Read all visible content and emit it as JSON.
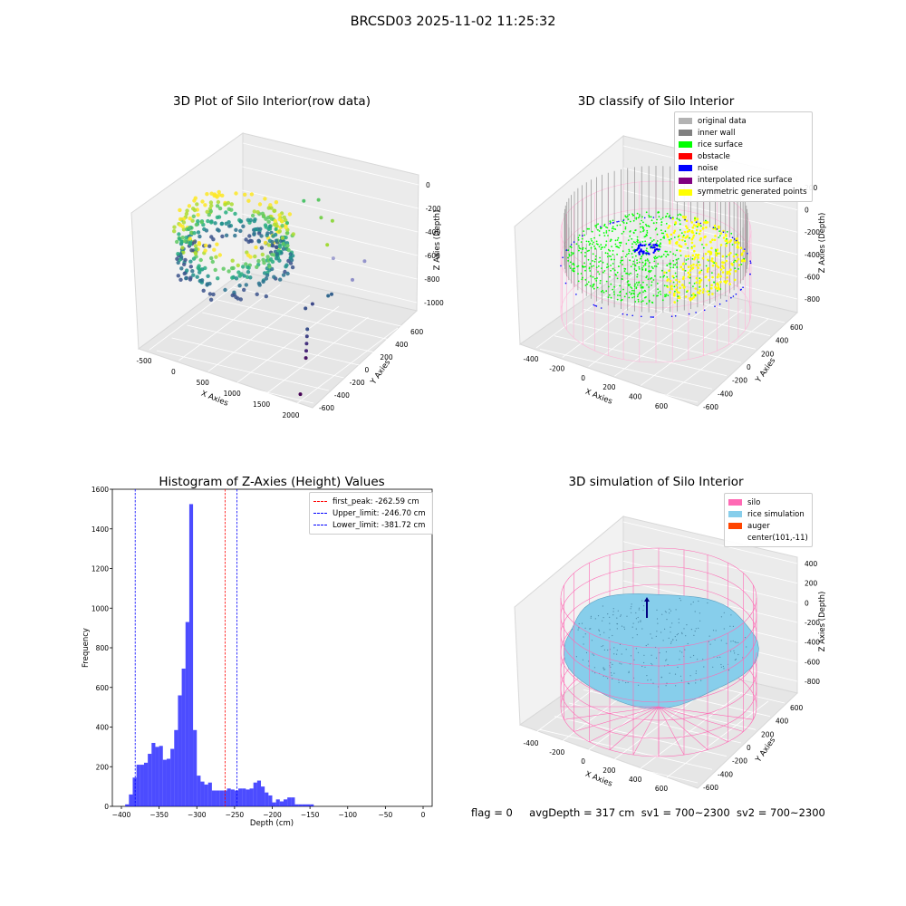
{
  "figure": {
    "suptitle": "BRCSD03 2025-11-02 11:25:32",
    "status": {
      "flag": "flag = 0",
      "avg_depth": "avgDepth = 317 cm",
      "sv1": "sv1 = 700~2300",
      "sv2": "sv2 = 700~2300"
    }
  },
  "chart_data": [
    {
      "type": "scatter",
      "projection": "3d",
      "title": "3D Plot of Silo Interior(row data)",
      "xlabel": "X Axies",
      "ylabel": "Y Axies",
      "zlabel": "Z Axies (Depth)",
      "xticks": [
        "-500",
        "0",
        "500",
        "1000",
        "1500",
        "2000"
      ],
      "yticks": [
        "-600",
        "-400",
        "-200",
        "0",
        "200",
        "400",
        "600"
      ],
      "zticks": [
        "0",
        "-200",
        "-400",
        "-600",
        "-800",
        "-1000"
      ],
      "xlim": [
        -500,
        2000
      ],
      "ylim": [
        -600,
        600
      ],
      "zlim": [
        -1000,
        0
      ],
      "colormap": "viridis",
      "outlier_points": [
        {
          "x": 600,
          "y": 100,
          "z": -260,
          "color": "#3fbc73"
        },
        {
          "x": 700,
          "y": 150,
          "z": -220,
          "color": "#48c16e"
        },
        {
          "x": 750,
          "y": 300,
          "z": -120,
          "color": "#4ec36b"
        },
        {
          "x": 900,
          "y": 350,
          "z": -110,
          "color": "#5cc863"
        },
        {
          "x": 1000,
          "y": 300,
          "z": -200,
          "color": "#7ad151"
        },
        {
          "x": 1100,
          "y": 350,
          "z": -230,
          "color": "#90d743"
        },
        {
          "x": 1150,
          "y": 250,
          "z": -350,
          "color": "#a2da37"
        },
        {
          "x": 1450,
          "y": 300,
          "z": -580,
          "color": "#8f8fc8"
        },
        {
          "x": 1300,
          "y": 200,
          "z": -400,
          "color": "#a0a0d0"
        },
        {
          "x": 1500,
          "y": 400,
          "z": -480,
          "color": "#9494cc"
        },
        {
          "x": 1150,
          "y": 0,
          "z": -700,
          "color": "#3b528b"
        },
        {
          "x": 1250,
          "y": 0,
          "z": -650,
          "color": "#3e4a89"
        },
        {
          "x": 1350,
          "y": 100,
          "z": -620,
          "color": "#31688e"
        },
        {
          "x": 1400,
          "y": 100,
          "z": -600,
          "color": "#35608d"
        },
        {
          "x": 1300,
          "y": -100,
          "z": -780,
          "color": "#3b518b"
        },
        {
          "x": 1320,
          "y": -120,
          "z": -820,
          "color": "#414487"
        },
        {
          "x": 1340,
          "y": -140,
          "z": -860,
          "color": "#46337f"
        },
        {
          "x": 1360,
          "y": -160,
          "z": -900,
          "color": "#482677"
        },
        {
          "x": 1380,
          "y": -180,
          "z": -940,
          "color": "#471164"
        },
        {
          "x": 1700,
          "y": -500,
          "z": -1000,
          "color": "#440154"
        }
      ]
    },
    {
      "type": "scatter",
      "projection": "3d",
      "title": "3D classify of Silo Interior",
      "xlabel": "X Axies",
      "ylabel": "Y Axies",
      "zlabel": "Z Axies (Depth)",
      "xticks": [
        "-400",
        "-200",
        "0",
        "200",
        "400",
        "600"
      ],
      "yticks": [
        "-600",
        "-400",
        "-200",
        "0",
        "200",
        "400",
        "600"
      ],
      "zticks": [
        "200",
        "0",
        "-200",
        "-400",
        "-600",
        "-800"
      ],
      "xlim": [
        -500,
        700
      ],
      "ylim": [
        -600,
        600
      ],
      "zlim": [
        -900,
        300
      ],
      "legend": [
        {
          "label": "original data",
          "color": "#b3b3b3"
        },
        {
          "label": "inner wall",
          "color": "#808080"
        },
        {
          "label": "rice surface",
          "color": "#00ff00"
        },
        {
          "label": "obstacle",
          "color": "#ff0000"
        },
        {
          "label": "noise",
          "color": "#0000ff"
        },
        {
          "label": "interpolated rice surface",
          "color": "#800080"
        },
        {
          "label": "symmetric generated points",
          "color": "#ffff00"
        }
      ]
    },
    {
      "type": "bar",
      "title": "Histogram of Z-Axies (Height) Values",
      "xlabel": "Depth (cm)",
      "ylabel": "Frequency",
      "xlim": [
        -412,
        12
      ],
      "ylim": [
        0,
        1600
      ],
      "bar_color": "#0000ff",
      "bin_width": 5,
      "bin_starts": [
        -400,
        -395,
        -390,
        -385,
        -380,
        -375,
        -370,
        -365,
        -360,
        -355,
        -350,
        -345,
        -340,
        -335,
        -330,
        -325,
        -320,
        -315,
        -310,
        -305,
        -300,
        -295,
        -290,
        -285,
        -280,
        -275,
        -270,
        -265,
        -260,
        -255,
        -250,
        -245,
        -240,
        -235,
        -230,
        -225,
        -220,
        -215,
        -210,
        -205,
        -200,
        -195,
        -190,
        -185,
        -180,
        -175,
        -170,
        -165,
        -160,
        -155,
        -150,
        -145,
        -140,
        -135,
        -130,
        -125,
        -120,
        -115,
        -110,
        -105,
        -100,
        -95,
        -90,
        -85,
        -80,
        -75,
        -70,
        -65,
        -60,
        -55,
        -50,
        -45,
        -40,
        -35,
        -30,
        -25,
        -20,
        -15,
        -10,
        -5
      ],
      "values": [
        0,
        10,
        60,
        145,
        210,
        210,
        220,
        265,
        320,
        300,
        305,
        235,
        240,
        290,
        385,
        560,
        695,
        930,
        1525,
        385,
        155,
        125,
        110,
        120,
        80,
        80,
        80,
        80,
        90,
        85,
        80,
        90,
        90,
        85,
        90,
        120,
        130,
        100,
        70,
        55,
        20,
        35,
        25,
        35,
        45,
        45,
        10,
        10,
        10,
        10,
        10,
        0,
        0,
        0,
        0,
        0,
        0,
        0,
        0,
        0,
        0,
        0,
        0,
        0,
        0,
        0,
        0,
        0,
        0,
        0,
        0,
        0,
        0,
        0,
        0,
        0,
        0,
        0,
        0,
        0
      ],
      "xticks": [
        "−400",
        "−350",
        "−300",
        "−250",
        "−200",
        "−150",
        "−100",
        "−50",
        "0"
      ],
      "yticks": [
        "0",
        "200",
        "400",
        "600",
        "800",
        "1000",
        "1200",
        "1400",
        "1600"
      ],
      "vlines": [
        {
          "label": "first_peak: -262.59 cm",
          "x": -262.59,
          "color": "#ff0000"
        },
        {
          "label": "Upper_limit: -246.70 cm",
          "x": -246.7,
          "color": "#0000ff"
        },
        {
          "label": "Lower_limit: -381.72 cm",
          "x": -381.72,
          "color": "#0000ff"
        }
      ]
    },
    {
      "type": "scatter",
      "projection": "3d",
      "title": "3D simulation of Silo Interior",
      "xlabel": "X Axies",
      "ylabel": "Y Axies",
      "zlabel": "Z Axies (Depth)",
      "xticks": [
        "-400",
        "-200",
        "0",
        "200",
        "400",
        "600"
      ],
      "yticks": [
        "-600",
        "-400",
        "-200",
        "0",
        "200",
        "400",
        "600"
      ],
      "zticks": [
        "400",
        "200",
        "0",
        "-200",
        "-400",
        "-600",
        "-800"
      ],
      "xlim": [
        -500,
        700
      ],
      "ylim": [
        -600,
        600
      ],
      "zlim": [
        -900,
        500
      ],
      "legend": [
        {
          "label": "silo",
          "color": "#ff69b4"
        },
        {
          "label": "rice simulation",
          "color": "#87ceeb"
        },
        {
          "label": "auger",
          "color": "#ff4500"
        },
        {
          "label": "center(101,-11)",
          "color": "none"
        }
      ]
    }
  ]
}
